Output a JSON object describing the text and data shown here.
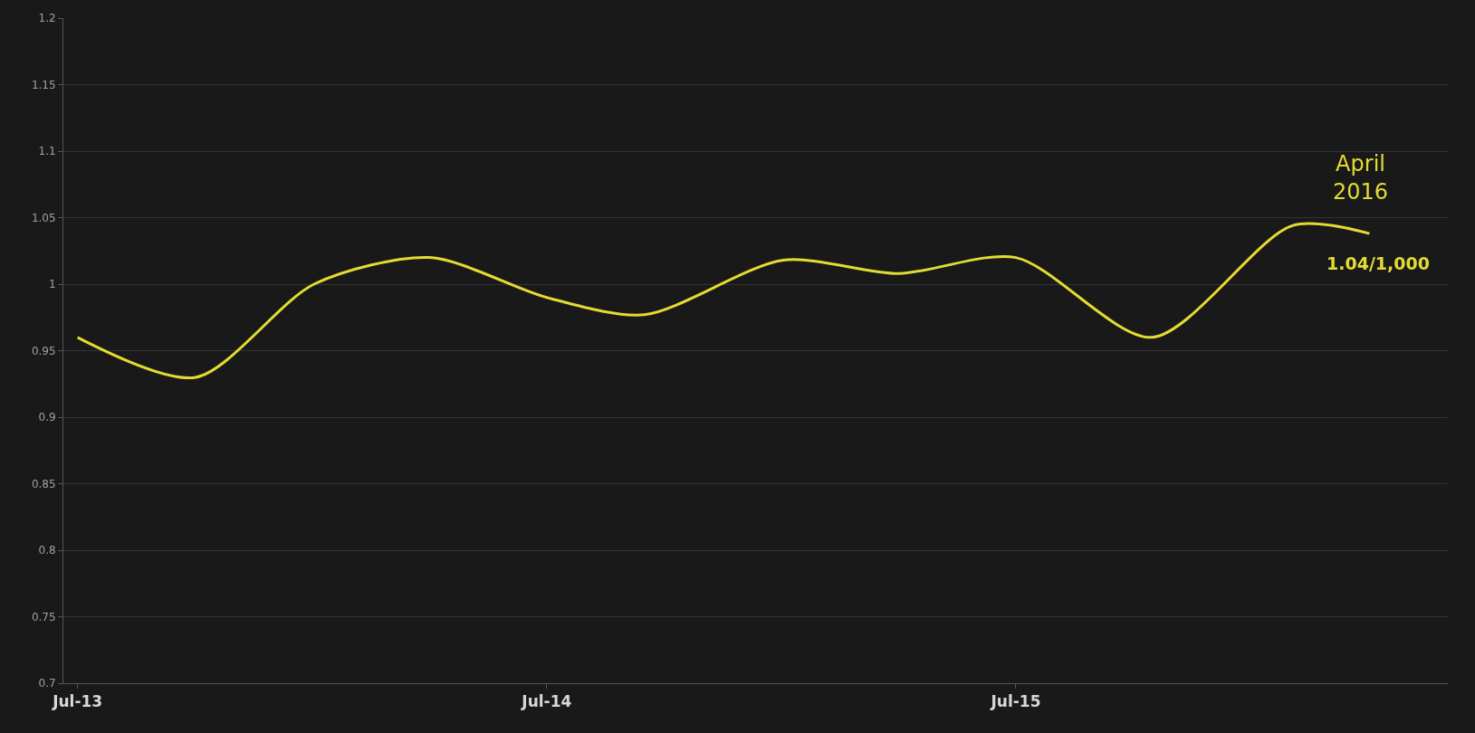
{
  "chart_data": {
    "type": "line",
    "x": [
      "2013-07",
      "2013-10",
      "2014-01",
      "2014-04",
      "2014-07",
      "2014-09-15",
      "2015-01",
      "2015-04",
      "2015-07",
      "2015-10-15",
      "2016-02",
      "2016-04"
    ],
    "series": [
      {
        "color": "#e2dc32",
        "values": [
          0.96,
          0.93,
          1.0,
          1.02,
          0.99,
          0.977,
          1.018,
          1.008,
          1.02,
          0.96,
          1.044,
          1.038
        ]
      }
    ],
    "xlim": [
      "2013-06-20",
      "2016-06-01"
    ],
    "xticks": [
      {
        "value": "2013-07-01",
        "label": "Jul-13"
      },
      {
        "value": "2014-07-01",
        "label": "Jul-14"
      },
      {
        "value": "2015-07-01",
        "label": "Jul-15"
      }
    ],
    "ylim": [
      0.7,
      1.2
    ],
    "yticks": [
      0.7,
      0.75,
      0.8,
      0.85,
      0.9,
      0.95,
      1,
      1.05,
      1.1,
      1.15,
      1.2
    ],
    "grid": "y",
    "annotations": [
      {
        "text": "April 2016",
        "x": "2016-04",
        "y": 1.038
      },
      {
        "text": "1.04/1,000",
        "x": "2016-04",
        "y": 1.038
      }
    ]
  }
}
